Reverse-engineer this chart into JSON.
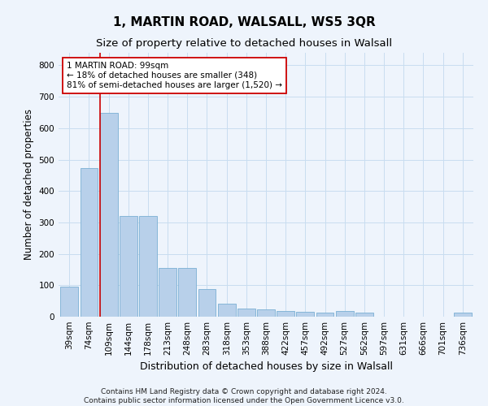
{
  "title": "1, MARTIN ROAD, WALSALL, WS5 3QR",
  "subtitle": "Size of property relative to detached houses in Walsall",
  "xlabel": "Distribution of detached houses by size in Walsall",
  "ylabel": "Number of detached properties",
  "categories": [
    "39sqm",
    "74sqm",
    "109sqm",
    "144sqm",
    "178sqm",
    "213sqm",
    "248sqm",
    "283sqm",
    "318sqm",
    "353sqm",
    "388sqm",
    "422sqm",
    "457sqm",
    "492sqm",
    "527sqm",
    "562sqm",
    "597sqm",
    "631sqm",
    "666sqm",
    "701sqm",
    "736sqm"
  ],
  "values": [
    95,
    473,
    648,
    320,
    320,
    155,
    155,
    88,
    42,
    25,
    22,
    18,
    15,
    13,
    17,
    13,
    0,
    0,
    0,
    0,
    12
  ],
  "bar_color": "#b8d0ea",
  "bar_edge_color": "#7aafd4",
  "grid_color": "#c8ddf0",
  "background_color": "#eef4fc",
  "vline_x_index": 2,
  "vline_color": "#cc0000",
  "annotation_text": "1 MARTIN ROAD: 99sqm\n← 18% of detached houses are smaller (348)\n81% of semi-detached houses are larger (1,520) →",
  "annotation_box_facecolor": "#ffffff",
  "annotation_box_edgecolor": "#cc0000",
  "footer": "Contains HM Land Registry data © Crown copyright and database right 2024.\nContains public sector information licensed under the Open Government Licence v3.0.",
  "ylim": [
    0,
    840
  ],
  "yticks": [
    0,
    100,
    200,
    300,
    400,
    500,
    600,
    700,
    800
  ],
  "title_fontsize": 11,
  "subtitle_fontsize": 9.5,
  "axis_label_fontsize": 8.5,
  "tick_fontsize": 7.5,
  "annotation_fontsize": 7.5,
  "footer_fontsize": 6.5
}
